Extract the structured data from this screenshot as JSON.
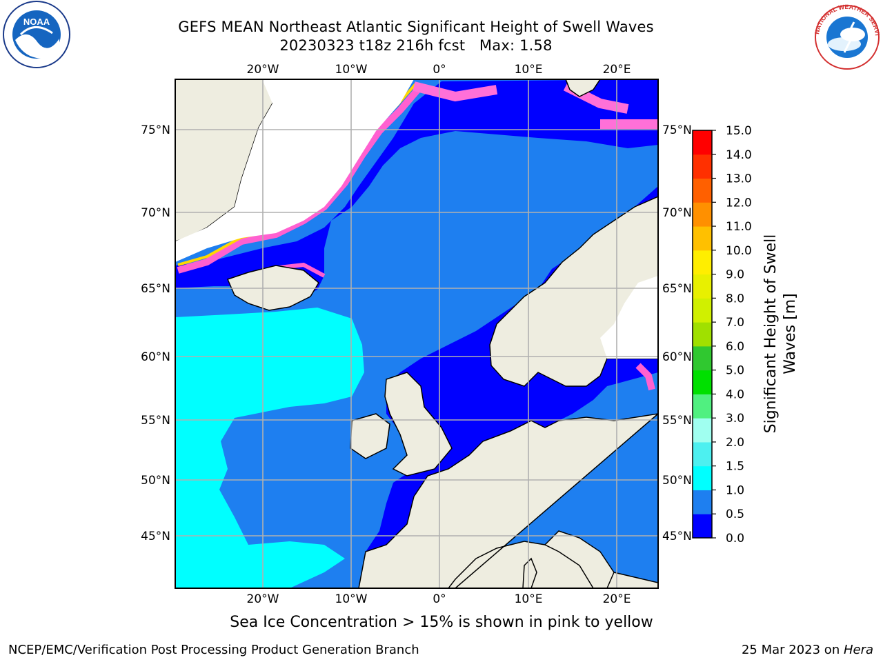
{
  "title_line1": "GEFS MEAN Northeast Atlantic Significant Height of Swell Waves",
  "title_line2": "20230323 t18z 216h fcst   Max: 1.58",
  "lon_ticks": [
    "20°W",
    "10°W",
    "0°",
    "10°E",
    "20°E"
  ],
  "lat_ticks": [
    "75°N",
    "70°N",
    "65°N",
    "60°N",
    "55°N",
    "50°N",
    "45°N"
  ],
  "colorbar": {
    "label_line1": "Significant Height of Swell",
    "label_line2": "Waves [m]",
    "ticks": [
      "0.0",
      "0.5",
      "1.0",
      "1.5",
      "2.0",
      "3.0",
      "4.0",
      "5.0",
      "6.0",
      "7.0",
      "8.0",
      "9.0",
      "10.0",
      "11.0",
      "12.0",
      "13.0",
      "14.0",
      "15.0"
    ],
    "colors": [
      "#0000ff",
      "#1e7ff0",
      "#00ffff",
      "#4df0f0",
      "#a0fff0",
      "#50f080",
      "#00e000",
      "#30c830",
      "#a0e000",
      "#d0f000",
      "#e8f000",
      "#ffee00",
      "#ffc000",
      "#ff9000",
      "#ff6000",
      "#ff3000",
      "#ff0000"
    ]
  },
  "note": "Sea Ice Concentration > 15% is shown in pink to yellow",
  "footer_left": "NCEP/EMC/Verification Post Processing Product Generation Branch",
  "footer_right_date": "25 Mar 2023 on ",
  "footer_right_host": "Hera",
  "logos": {
    "left": "NOAA",
    "right": "NATIONAL WEATHER SERVICE"
  }
}
